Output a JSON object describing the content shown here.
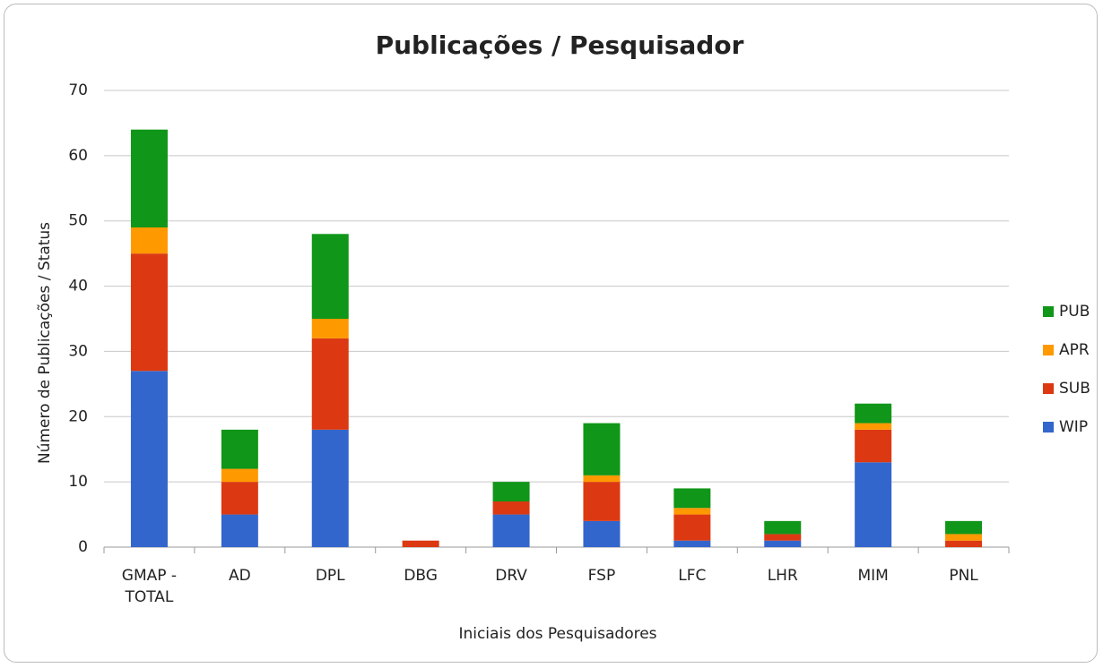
{
  "chart_data": {
    "type": "stacked_bar",
    "title": "Publicações / Pesquisador",
    "x_label": "Iniciais dos Pesquisadores",
    "y_label": "Número de Publicações / Status",
    "categories": [
      "GMAP - TOTAL",
      "AD",
      "DPL",
      "DBG",
      "DRV",
      "FSP",
      "LFC",
      "LHR",
      "MIM",
      "PNL"
    ],
    "series": [
      {
        "name": "WIP",
        "color": "#3366cc",
        "values": [
          27,
          5,
          18,
          0,
          5,
          4,
          1,
          1,
          13,
          0
        ]
      },
      {
        "name": "SUB",
        "color": "#dc3912",
        "values": [
          18,
          5,
          14,
          1,
          2,
          6,
          4,
          1,
          5,
          1
        ]
      },
      {
        "name": "APR",
        "color": "#ff9900",
        "values": [
          4,
          2,
          3,
          0,
          0,
          1,
          1,
          0,
          1,
          1
        ]
      },
      {
        "name": "PUB",
        "color": "#109618",
        "values": [
          15,
          6,
          13,
          0,
          3,
          8,
          3,
          2,
          3,
          2
        ]
      }
    ],
    "ylim": [
      0,
      70
    ],
    "yticks": [
      0,
      10,
      20,
      30,
      40,
      50,
      60,
      70
    ],
    "grid": true,
    "legend": "right"
  }
}
